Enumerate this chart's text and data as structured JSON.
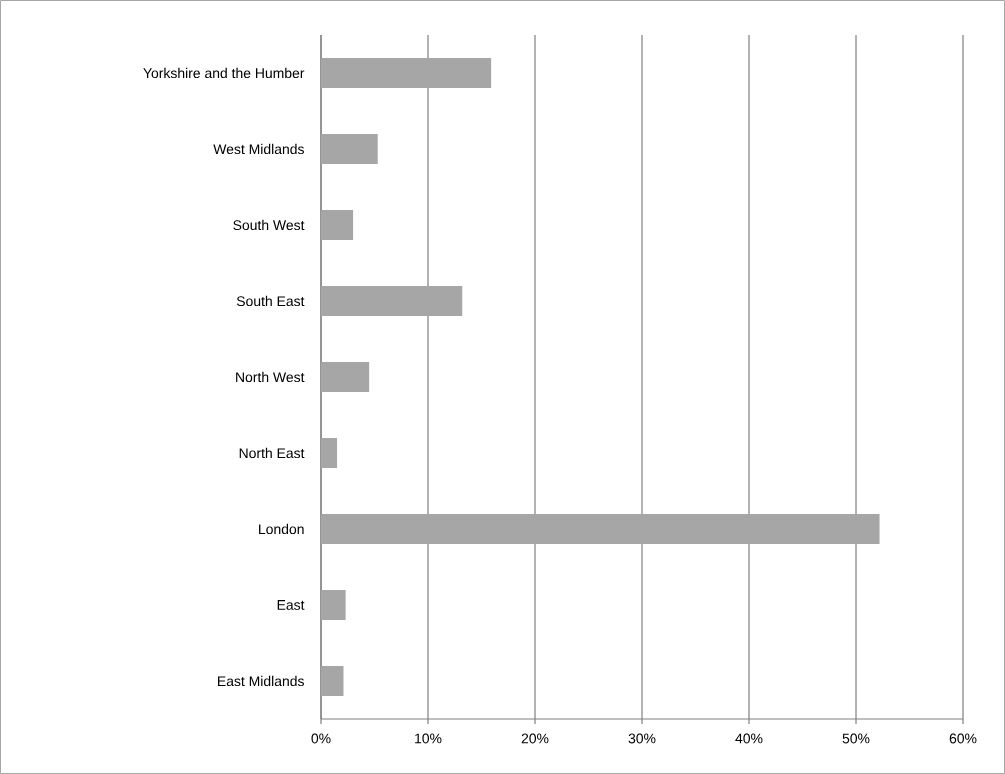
{
  "chart_data": {
    "type": "bar",
    "orientation": "horizontal",
    "categories": [
      "Yorkshire and the Humber",
      "West Midlands",
      "South West",
      "South East",
      "North West",
      "North East",
      "London",
      "East",
      "East Midlands"
    ],
    "values": [
      15.9,
      5.3,
      3.0,
      13.2,
      4.5,
      1.5,
      52.2,
      2.3,
      2.1
    ],
    "color": "#a6a6a6",
    "xlim": [
      0,
      60
    ],
    "xticks": [
      {
        "value": 0,
        "label": "0%"
      },
      {
        "value": 10,
        "label": "10%"
      },
      {
        "value": 20,
        "label": "20%"
      },
      {
        "value": 30,
        "label": "30%"
      },
      {
        "value": 40,
        "label": "40%"
      },
      {
        "value": 50,
        "label": "50%"
      },
      {
        "value": 60,
        "label": "60%"
      }
    ],
    "grid": "x",
    "legend": false
  }
}
